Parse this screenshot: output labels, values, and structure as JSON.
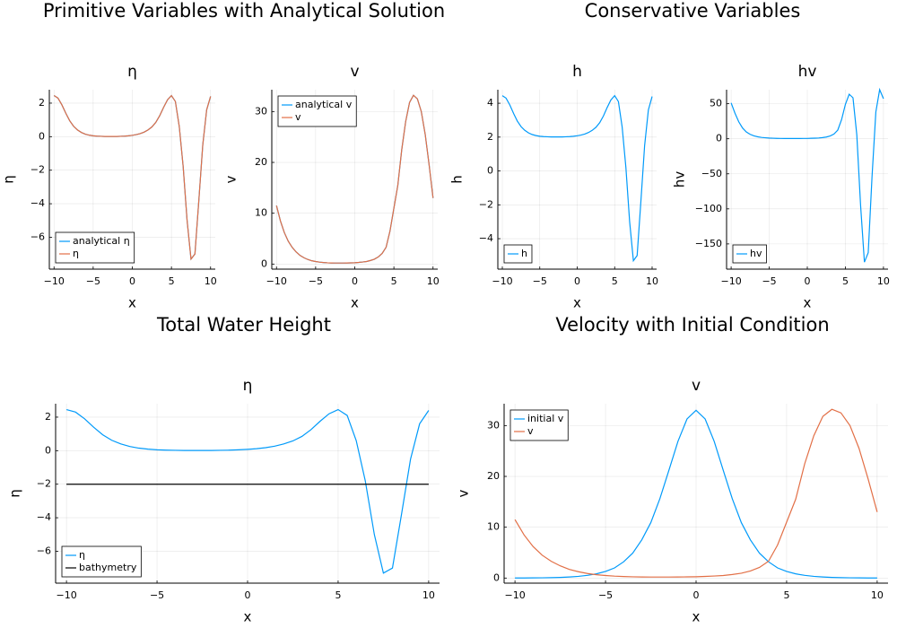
{
  "chart_data": [
    {
      "type": "line",
      "suptitle": "Primitive Variables with Analytical Solution",
      "title": "η",
      "xlabel": "x",
      "ylabel": "η",
      "x": [
        -10,
        -9.5,
        -9,
        -8.5,
        -8,
        -7.5,
        -7,
        -6.5,
        -6,
        -5.5,
        -5,
        -4.5,
        -4,
        -3.5,
        -3,
        -2.5,
        -2,
        -1.5,
        -1,
        -0.5,
        0,
        0.5,
        1,
        1.5,
        2,
        2.5,
        3,
        3.5,
        4,
        4.5,
        5,
        5.5,
        6,
        6.5,
        7,
        7.5,
        8,
        8.5,
        9,
        9.5,
        10
      ],
      "series": [
        {
          "name": "analytical η",
          "color": "#009AFA",
          "values": [
            2.45,
            2.3,
            1.9,
            1.4,
            0.95,
            0.62,
            0.4,
            0.25,
            0.15,
            0.09,
            0.05,
            0.03,
            0.02,
            0.01,
            0.01,
            0.01,
            0.01,
            0.02,
            0.03,
            0.05,
            0.08,
            0.12,
            0.18,
            0.27,
            0.4,
            0.58,
            0.85,
            1.25,
            1.75,
            2.2,
            2.45,
            2.1,
            0.6,
            -1.8,
            -5.0,
            -7.3,
            -7.0,
            -3.8,
            -0.5,
            1.6,
            2.4
          ]
        },
        {
          "name": "η",
          "color": "#E26F46",
          "values": [
            2.45,
            2.3,
            1.9,
            1.4,
            0.95,
            0.62,
            0.4,
            0.25,
            0.15,
            0.09,
            0.05,
            0.03,
            0.02,
            0.01,
            0.01,
            0.01,
            0.01,
            0.02,
            0.03,
            0.05,
            0.08,
            0.12,
            0.18,
            0.27,
            0.4,
            0.58,
            0.85,
            1.25,
            1.75,
            2.2,
            2.45,
            2.1,
            0.6,
            -1.8,
            -5.0,
            -7.3,
            -7.0,
            -3.8,
            -0.5,
            1.6,
            2.4
          ]
        }
      ],
      "xlim": [
        -10.6,
        10.6
      ],
      "xticks": [
        {
          "value": -10,
          "label": "−10"
        },
        {
          "value": -5,
          "label": "−5"
        },
        0,
        5,
        10
      ],
      "ylim": [
        -7.9,
        2.8
      ],
      "yticks": [
        {
          "value": -6,
          "label": "−6"
        },
        {
          "value": -4,
          "label": "−4"
        },
        {
          "value": -2,
          "label": "−2"
        },
        0,
        2
      ],
      "grid": true,
      "legend": "bottom-left"
    },
    {
      "type": "line",
      "title": "v",
      "xlabel": "x",
      "ylabel": "v",
      "x": [
        -10,
        -9.5,
        -9,
        -8.5,
        -8,
        -7.5,
        -7,
        -6.5,
        -6,
        -5.5,
        -5,
        -4.5,
        -4,
        -3.5,
        -3,
        -2.5,
        -2,
        -1.5,
        -1,
        -0.5,
        0,
        0.5,
        1,
        1.5,
        2,
        2.5,
        3,
        3.5,
        4,
        4.5,
        5,
        5.5,
        6,
        6.5,
        7,
        7.5,
        8,
        8.5,
        9,
        9.5,
        10
      ],
      "series": [
        {
          "name": "analytical v",
          "color": "#009AFA",
          "values": [
            11.5,
            8.5,
            6.2,
            4.5,
            3.3,
            2.4,
            1.7,
            1.25,
            0.9,
            0.65,
            0.5,
            0.38,
            0.3,
            0.25,
            0.22,
            0.2,
            0.2,
            0.2,
            0.21,
            0.23,
            0.26,
            0.32,
            0.4,
            0.5,
            0.7,
            0.95,
            1.4,
            2.1,
            3.3,
            6.5,
            11,
            15.5,
            22.5,
            28,
            31.8,
            33.2,
            32.5,
            30,
            25.5,
            19.5,
            13
          ]
        },
        {
          "name": "v",
          "color": "#E26F46",
          "values": [
            11.5,
            8.5,
            6.2,
            4.5,
            3.3,
            2.4,
            1.7,
            1.25,
            0.9,
            0.65,
            0.5,
            0.38,
            0.3,
            0.25,
            0.22,
            0.2,
            0.2,
            0.2,
            0.21,
            0.23,
            0.26,
            0.32,
            0.4,
            0.5,
            0.7,
            0.95,
            1.4,
            2.1,
            3.3,
            6.5,
            11,
            15.5,
            22.5,
            28,
            31.8,
            33.2,
            32.5,
            30,
            25.5,
            19.5,
            13
          ]
        }
      ],
      "xlim": [
        -10.6,
        10.6
      ],
      "xticks": [
        {
          "value": -10,
          "label": "−10"
        },
        {
          "value": -5,
          "label": "−5"
        },
        0,
        5,
        10
      ],
      "ylim": [
        -1,
        34.3
      ],
      "yticks": [
        0,
        10,
        20,
        30
      ],
      "grid": true,
      "legend": "top-left"
    },
    {
      "type": "line",
      "suptitle": "Conservative Variables",
      "title": "h",
      "xlabel": "x",
      "ylabel": "h",
      "x": [
        -10,
        -9.5,
        -9,
        -8.5,
        -8,
        -7.5,
        -7,
        -6.5,
        -6,
        -5.5,
        -5,
        -4.5,
        -4,
        -3.5,
        -3,
        -2.5,
        -2,
        -1.5,
        -1,
        -0.5,
        0,
        0.5,
        1,
        1.5,
        2,
        2.5,
        3,
        3.5,
        4,
        4.5,
        5,
        5.5,
        6,
        6.5,
        7,
        7.5,
        8,
        8.5,
        9,
        9.5,
        10
      ],
      "series": [
        {
          "name": "h",
          "color": "#009AFA",
          "values": [
            4.45,
            4.3,
            3.9,
            3.4,
            2.95,
            2.62,
            2.4,
            2.25,
            2.15,
            2.09,
            2.05,
            2.03,
            2.02,
            2.01,
            2.01,
            2.01,
            2.01,
            2.02,
            2.03,
            2.05,
            2.08,
            2.12,
            2.18,
            2.27,
            2.4,
            2.58,
            2.85,
            3.25,
            3.75,
            4.2,
            4.45,
            4.1,
            2.6,
            0.2,
            -3.0,
            -5.3,
            -5.0,
            -1.8,
            1.5,
            3.6,
            4.4
          ]
        }
      ],
      "xlim": [
        -10.6,
        10.6
      ],
      "xticks": [
        {
          "value": -10,
          "label": "−10"
        },
        {
          "value": -5,
          "label": "−5"
        },
        0,
        5,
        10
      ],
      "ylim": [
        -5.8,
        4.8
      ],
      "yticks": [
        {
          "value": -4,
          "label": "−4"
        },
        {
          "value": -2,
          "label": "−2"
        },
        0,
        2,
        4
      ],
      "grid": true,
      "legend": "bottom-left"
    },
    {
      "type": "line",
      "title": "hv",
      "xlabel": "x",
      "ylabel": "hv",
      "x": [
        -10,
        -9.5,
        -9,
        -8.5,
        -8,
        -7.5,
        -7,
        -6.5,
        -6,
        -5.5,
        -5,
        -4.5,
        -4,
        -3.5,
        -3,
        -2.5,
        -2,
        -1.5,
        -1,
        -0.5,
        0,
        0.5,
        1,
        1.5,
        2,
        2.5,
        3,
        3.5,
        4,
        4.5,
        5,
        5.5,
        6,
        6.5,
        7,
        7.5,
        8,
        8.5,
        9,
        9.5,
        10
      ],
      "series": [
        {
          "name": "hv",
          "color": "#009AFA",
          "values": [
            51.2,
            36.6,
            24.2,
            15.3,
            9.7,
            6.3,
            4.1,
            2.8,
            1.9,
            1.4,
            1.0,
            0.8,
            0.6,
            0.5,
            0.4,
            0.4,
            0.4,
            0.4,
            0.4,
            0.5,
            0.5,
            0.7,
            0.9,
            1.1,
            1.7,
            2.5,
            4.0,
            6.8,
            12.4,
            27.3,
            49.0,
            63.6,
            58.5,
            5.6,
            -95.4,
            -176.0,
            -162.5,
            -54,
            38.3,
            70.2,
            57.2
          ]
        }
      ],
      "xlim": [
        -10.6,
        10.6
      ],
      "xticks": [
        {
          "value": -10,
          "label": "−10"
        },
        {
          "value": -5,
          "label": "−5"
        },
        0,
        5,
        10
      ],
      "ylim": [
        -186,
        70
      ],
      "yticks": [
        {
          "value": -150,
          "label": "−150"
        },
        {
          "value": -100,
          "label": "−100"
        },
        {
          "value": -50,
          "label": "−50"
        },
        0,
        50
      ],
      "grid": true,
      "legend": "bottom-left"
    },
    {
      "type": "line",
      "suptitle": "Total Water Height",
      "title": "η",
      "xlabel": "x",
      "ylabel": "η",
      "x": [
        -10,
        -9.5,
        -9,
        -8.5,
        -8,
        -7.5,
        -7,
        -6.5,
        -6,
        -5.5,
        -5,
        -4.5,
        -4,
        -3.5,
        -3,
        -2.5,
        -2,
        -1.5,
        -1,
        -0.5,
        0,
        0.5,
        1,
        1.5,
        2,
        2.5,
        3,
        3.5,
        4,
        4.5,
        5,
        5.5,
        6,
        6.5,
        7,
        7.5,
        8,
        8.5,
        9,
        9.5,
        10
      ],
      "series": [
        {
          "name": "η",
          "color": "#009AFA",
          "values": [
            2.45,
            2.3,
            1.9,
            1.4,
            0.95,
            0.62,
            0.4,
            0.25,
            0.15,
            0.09,
            0.05,
            0.03,
            0.02,
            0.01,
            0.01,
            0.01,
            0.01,
            0.02,
            0.03,
            0.05,
            0.08,
            0.12,
            0.18,
            0.27,
            0.4,
            0.58,
            0.85,
            1.25,
            1.75,
            2.2,
            2.45,
            2.1,
            0.6,
            -1.8,
            -5.0,
            -7.3,
            -7.0,
            -3.8,
            -0.5,
            1.6,
            2.4
          ]
        },
        {
          "name": "bathymetry",
          "color": "#000000",
          "x": [
            -10,
            10
          ],
          "values": [
            -2,
            -2
          ]
        }
      ],
      "xlim": [
        -10.6,
        10.6
      ],
      "xticks": [
        {
          "value": -10,
          "label": "−10"
        },
        {
          "value": -5,
          "label": "−5"
        },
        0,
        5,
        10
      ],
      "ylim": [
        -7.9,
        2.8
      ],
      "yticks": [
        {
          "value": -6,
          "label": "−6"
        },
        {
          "value": -4,
          "label": "−4"
        },
        {
          "value": -2,
          "label": "−2"
        },
        0,
        2
      ],
      "grid": true,
      "legend": "bottom-left"
    },
    {
      "type": "line",
      "suptitle": "Velocity with Initial Condition",
      "title": "v",
      "xlabel": "x",
      "ylabel": "v",
      "x": [
        -10,
        -9.5,
        -9,
        -8.5,
        -8,
        -7.5,
        -7,
        -6.5,
        -6,
        -5.5,
        -5,
        -4.5,
        -4,
        -3.5,
        -3,
        -2.5,
        -2,
        -1.5,
        -1,
        -0.5,
        0,
        0.5,
        1,
        1.5,
        2,
        2.5,
        3,
        3.5,
        4,
        4.5,
        5,
        5.5,
        6,
        6.5,
        7,
        7.5,
        8,
        8.5,
        9,
        9.5,
        10
      ],
      "series": [
        {
          "name": "initial v",
          "color": "#009AFA",
          "values": [
            0.01,
            0.02,
            0.03,
            0.05,
            0.08,
            0.13,
            0.21,
            0.33,
            0.53,
            0.83,
            1.3,
            2.0,
            3.2,
            4.9,
            7.5,
            10.9,
            15.6,
            21.2,
            26.9,
            31.3,
            33,
            31.3,
            26.9,
            21.2,
            15.6,
            10.9,
            7.5,
            4.9,
            3.2,
            2.0,
            1.3,
            0.83,
            0.53,
            0.33,
            0.21,
            0.13,
            0.08,
            0.05,
            0.03,
            0.02,
            0.01
          ]
        },
        {
          "name": "v",
          "color": "#E26F46",
          "values": [
            11.5,
            8.5,
            6.2,
            4.5,
            3.3,
            2.4,
            1.7,
            1.25,
            0.9,
            0.65,
            0.5,
            0.38,
            0.3,
            0.25,
            0.22,
            0.2,
            0.2,
            0.2,
            0.21,
            0.23,
            0.26,
            0.32,
            0.4,
            0.5,
            0.7,
            0.95,
            1.4,
            2.1,
            3.3,
            6.5,
            11,
            15.5,
            22.5,
            28,
            31.8,
            33.2,
            32.5,
            30,
            25.5,
            19.5,
            13
          ]
        }
      ],
      "xlim": [
        -10.6,
        10.6
      ],
      "xticks": [
        {
          "value": -10,
          "label": "−10"
        },
        {
          "value": -5,
          "label": "−5"
        },
        0,
        5,
        10
      ],
      "ylim": [
        -1,
        34.3
      ],
      "yticks": [
        0,
        10,
        20,
        30
      ],
      "grid": true,
      "legend": "top-left"
    }
  ]
}
